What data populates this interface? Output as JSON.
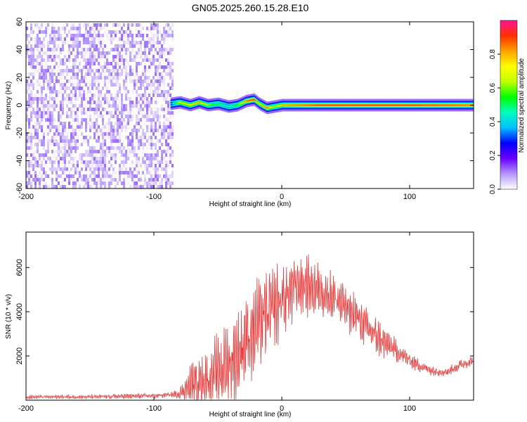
{
  "figure": {
    "title": "GN05.2025.260.15.28.E10"
  },
  "chart_data": [
    {
      "type": "heatmap",
      "id": "spectrogram",
      "title": "GN05.2025.260.15.28.E10",
      "xlabel": "Height of straight line (km)",
      "ylabel": "Frequency (Hz)",
      "xlim": [
        -200,
        150
      ],
      "ylim": [
        -60,
        60
      ],
      "xticks": [
        -200,
        -100,
        0,
        100
      ],
      "yticks": [
        -60,
        -40,
        -20,
        0,
        20,
        40,
        60
      ],
      "colorbar": {
        "label": "Normalized spectral amplitude",
        "range": [
          0,
          1
        ],
        "ticks": [
          0.0,
          0.2,
          0.4,
          0.6,
          0.8
        ],
        "colors": [
          "#ffffff",
          "#b497ff",
          "#6a00ff",
          "#0000ff",
          "#00bfff",
          "#00ffbf",
          "#00ff00",
          "#bfff00",
          "#ffff00",
          "#ffa000",
          "#ff3000",
          "#ff1493"
        ]
      },
      "noise_region": {
        "x": [
          -200,
          -85
        ],
        "y": [
          -60,
          60
        ],
        "amplitude_range": [
          0.0,
          0.12
        ]
      },
      "ridge": {
        "x": [
          -87,
          -80,
          -72,
          -65,
          -58,
          -50,
          -42,
          -35,
          -28,
          -22,
          -18,
          -12,
          -6,
          0,
          30,
          60,
          100,
          150
        ],
        "y": [
          1,
          2,
          0,
          2,
          0,
          1,
          -1,
          0,
          3,
          4,
          1,
          -2,
          -1,
          0,
          0,
          0,
          0,
          0
        ],
        "amplitude": [
          0.35,
          0.7,
          0.75,
          0.8,
          0.6,
          0.5,
          0.45,
          0.55,
          0.85,
          0.9,
          0.7,
          0.85,
          0.6,
          0.8,
          0.9,
          0.9,
          0.9,
          0.85
        ]
      }
    },
    {
      "type": "line",
      "id": "snr",
      "xlabel": "Height of straight line (km)",
      "ylabel": "SNR (10 * v/v)",
      "xlim": [
        -200,
        150
      ],
      "ylim": [
        0,
        7600
      ],
      "xticks": [
        -200,
        -100,
        0,
        100
      ],
      "yticks": [
        2000,
        4000,
        6000
      ],
      "color": "#e83a3a",
      "envelope": {
        "x": [
          -200,
          -150,
          -100,
          -85,
          -80,
          -75,
          -70,
          -60,
          -50,
          -45,
          -40,
          -35,
          -30,
          -25,
          -20,
          -15,
          -10,
          -5,
          0,
          5,
          10,
          15,
          20,
          30,
          40,
          50,
          60,
          70,
          80,
          90,
          100,
          110,
          120,
          130,
          140,
          150
        ],
        "base": [
          150,
          150,
          200,
          250,
          300,
          500,
          700,
          900,
          1200,
          1500,
          1700,
          1900,
          2600,
          3000,
          3300,
          3600,
          3900,
          4200,
          4500,
          4800,
          5100,
          5200,
          5200,
          5000,
          4700,
          4200,
          3700,
          3100,
          2600,
          2200,
          1800,
          1500,
          1300,
          1300,
          1600,
          1800
        ],
        "amplitude": [
          100,
          100,
          150,
          150,
          300,
          600,
          1200,
          1600,
          2000,
          2000,
          2200,
          2300,
          2600,
          2500,
          2400,
          2200,
          2200,
          2000,
          2000,
          1900,
          1800,
          1600,
          1500,
          1400,
          1300,
          1200,
          1100,
          1000,
          800,
          600,
          400,
          300,
          250,
          250,
          300,
          300
        ]
      }
    }
  ]
}
